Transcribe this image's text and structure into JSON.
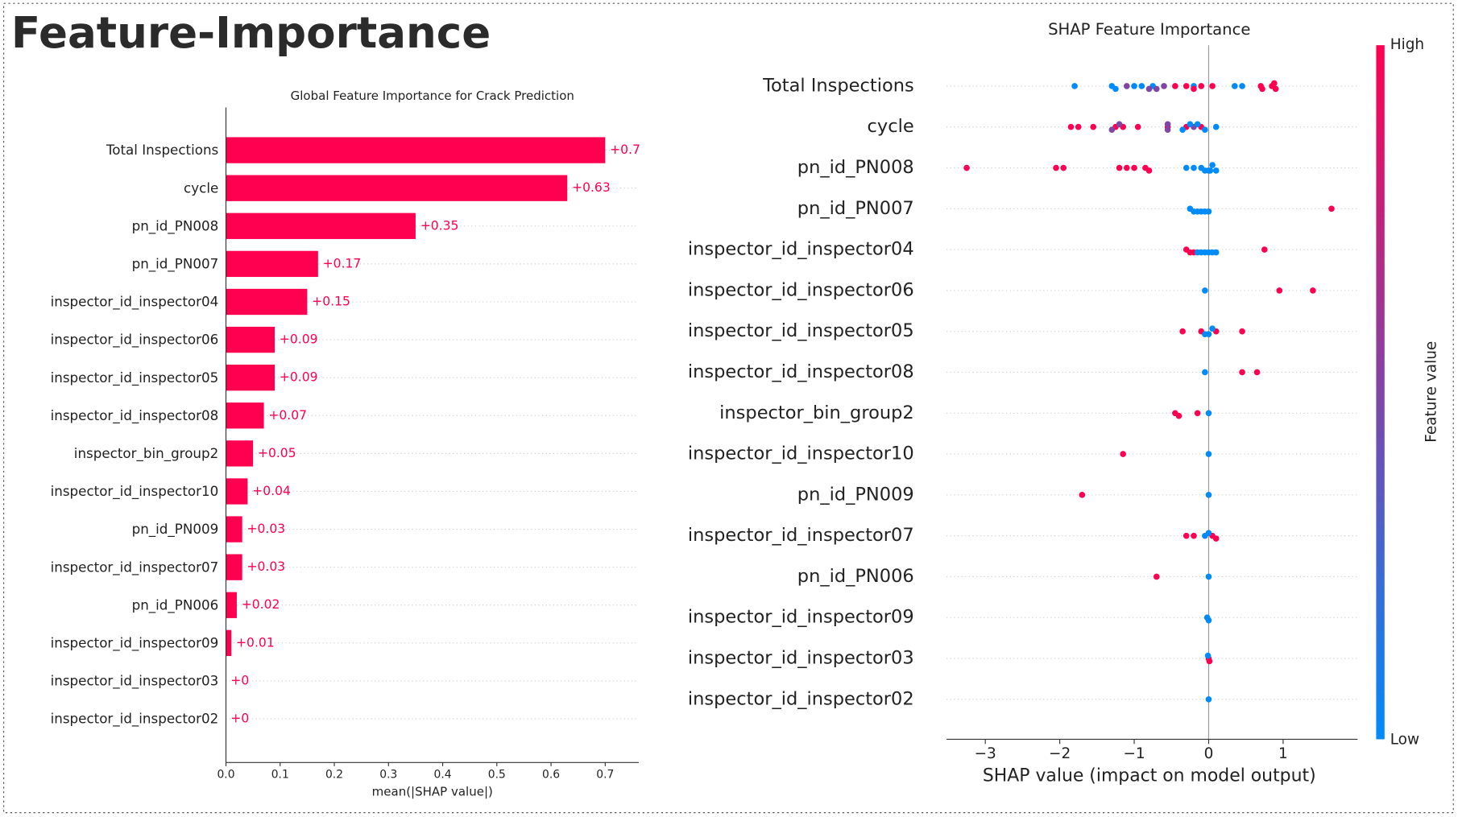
{
  "header": {
    "title": "Feature-Importance"
  },
  "chart_data": [
    {
      "type": "barh",
      "title": "Global Feature Importance for Crack Prediction",
      "xlabel": "mean(|SHAP value|)",
      "categories": [
        "Total Inspections",
        "cycle",
        "pn_id_PN008",
        "pn_id_PN007",
        "inspector_id_inspector04",
        "inspector_id_inspector06",
        "inspector_id_inspector05",
        "inspector_id_inspector08",
        "inspector_bin_group2",
        "inspector_id_inspector10",
        "pn_id_PN009",
        "inspector_id_inspector07",
        "pn_id_PN006",
        "inspector_id_inspector09",
        "inspector_id_inspector03",
        "inspector_id_inspector02"
      ],
      "values": [
        0.7,
        0.63,
        0.35,
        0.17,
        0.15,
        0.09,
        0.09,
        0.07,
        0.05,
        0.04,
        0.03,
        0.03,
        0.02,
        0.01,
        0,
        0
      ],
      "value_labels": [
        "+0.7",
        "+0.63",
        "+0.35",
        "+0.17",
        "+0.15",
        "+0.09",
        "+0.09",
        "+0.07",
        "+0.05",
        "+0.04",
        "+0.03",
        "+0.03",
        "+0.02",
        "+0.01",
        "+0",
        "+0"
      ],
      "color": "#ff0051",
      "xlim": [
        0,
        0.762
      ],
      "xticks": [
        {
          "value": 0,
          "label": "0.0"
        },
        0.1,
        0.2,
        0.3,
        0.4,
        0.5,
        0.6,
        0.7
      ]
    },
    {
      "type": "beeswarm",
      "title": "SHAP Feature Importance",
      "xlabel": "SHAP value (impact on model output)",
      "colormap": [
        "#008bfb",
        "#ff0051"
      ],
      "colorbar": {
        "high": "High",
        "low": "Low",
        "label": "Feature value"
      },
      "xlim": [
        -3.52,
        2.0
      ],
      "xticks": [
        {
          "value": -3,
          "label": "−3"
        },
        {
          "value": -2,
          "label": "−2"
        },
        {
          "value": -1,
          "label": "−1"
        },
        0,
        1
      ],
      "series": [
        {
          "name": "Total Inspections",
          "shap": [
            -1.8,
            -1.3,
            -1.25,
            -1.0,
            -0.9,
            -0.75,
            -0.2,
            0.35,
            0.45,
            -1.1,
            -0.8,
            -0.7,
            -0.6,
            -0.45,
            -0.3,
            -0.2,
            -0.1,
            0.05,
            0.7,
            0.72,
            0.85,
            0.9,
            0.88
          ],
          "feature_values": [
            0,
            0,
            0,
            0,
            0,
            0,
            0,
            0,
            0,
            0.5,
            0.5,
            0.5,
            0.5,
            1,
            1,
            1,
            1,
            1,
            1,
            1,
            1,
            1,
            1
          ]
        },
        {
          "name": "cycle",
          "shap": [
            -1.85,
            -1.75,
            -1.55,
            -1.25,
            -1.15,
            -0.95,
            -0.55,
            -0.3,
            -0.1,
            -1.3,
            -1.2,
            -0.55,
            -0.55,
            -0.2,
            -0.35,
            -0.25,
            -0.15,
            -0.05,
            0.1
          ],
          "feature_values": [
            1,
            1,
            1,
            1,
            1,
            1,
            1,
            1,
            1,
            0.5,
            0.5,
            0.5,
            0.5,
            0.5,
            0,
            0,
            0,
            0,
            0
          ]
        },
        {
          "name": "pn_id_PN008",
          "shap": [
            -3.25,
            -2.05,
            -1.95,
            -1.2,
            -1.1,
            -1.0,
            -0.85,
            -0.8,
            -0.3,
            -0.2,
            -0.1,
            -0.05,
            0,
            0.02,
            0.05,
            0.1
          ],
          "feature_values": [
            1,
            1,
            1,
            1,
            1,
            1,
            1,
            1,
            0,
            0,
            0,
            0,
            0,
            0,
            0,
            0
          ]
        },
        {
          "name": "pn_id_PN007",
          "shap": [
            -0.25,
            -0.2,
            -0.15,
            -0.1,
            -0.05,
            0,
            1.65
          ],
          "feature_values": [
            0,
            0,
            0,
            0,
            0,
            0,
            1
          ]
        },
        {
          "name": "inspector_id_inspector04",
          "shap": [
            -0.3,
            -0.25,
            -0.2,
            -0.15,
            -0.1,
            -0.05,
            0,
            0.05,
            0.1,
            0.75
          ],
          "feature_values": [
            1,
            1,
            1,
            0,
            0,
            0,
            0,
            0,
            0,
            1
          ]
        },
        {
          "name": "inspector_id_inspector06",
          "shap": [
            -0.05,
            0.95,
            1.4
          ],
          "feature_values": [
            0,
            1,
            1
          ]
        },
        {
          "name": "inspector_id_inspector05",
          "shap": [
            -0.35,
            -0.1,
            0.1,
            0.45,
            -0.05,
            0,
            0.05
          ],
          "feature_values": [
            1,
            1,
            1,
            1,
            0,
            0,
            0
          ]
        },
        {
          "name": "inspector_id_inspector08",
          "shap": [
            -0.05,
            0.45,
            0.65
          ],
          "feature_values": [
            0,
            1,
            1
          ]
        },
        {
          "name": "inspector_bin_group2",
          "shap": [
            -0.45,
            -0.4,
            -0.15,
            0
          ],
          "feature_values": [
            1,
            1,
            1,
            0
          ]
        },
        {
          "name": "inspector_id_inspector10",
          "shap": [
            -1.15,
            0
          ],
          "feature_values": [
            1,
            0
          ]
        },
        {
          "name": "pn_id_PN009",
          "shap": [
            -1.7,
            0
          ],
          "feature_values": [
            1,
            0
          ]
        },
        {
          "name": "inspector_id_inspector07",
          "shap": [
            -0.3,
            -0.2,
            0.05,
            0.1,
            -0.05,
            0
          ],
          "feature_values": [
            1,
            1,
            1,
            1,
            0,
            0
          ]
        },
        {
          "name": "pn_id_PN006",
          "shap": [
            -0.7,
            0
          ],
          "feature_values": [
            1,
            0
          ]
        },
        {
          "name": "inspector_id_inspector09",
          "shap": [
            -0.02,
            0
          ],
          "feature_values": [
            0,
            0
          ]
        },
        {
          "name": "inspector_id_inspector03",
          "shap": [
            0,
            0.01,
            -0.01
          ],
          "feature_values": [
            1,
            1,
            0
          ]
        },
        {
          "name": "inspector_id_inspector02",
          "shap": [
            0
          ],
          "feature_values": [
            0
          ]
        }
      ]
    }
  ]
}
